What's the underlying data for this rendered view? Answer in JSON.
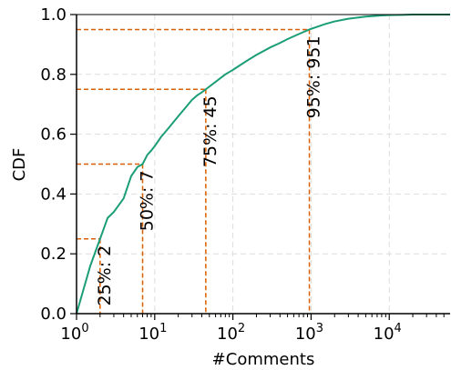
{
  "chart_data": {
    "type": "line",
    "xlabel": "#Comments",
    "ylabel": "CDF",
    "xscale": "log",
    "xlim": [
      1,
      60000
    ],
    "ylim": [
      0,
      1
    ],
    "grid": true,
    "x_ticks": [
      {
        "value": 1,
        "base": "10",
        "exp": "0"
      },
      {
        "value": 10,
        "base": "10",
        "exp": "1"
      },
      {
        "value": 100,
        "base": "10",
        "exp": "2"
      },
      {
        "value": 1000,
        "base": "10",
        "exp": "3"
      },
      {
        "value": 10000,
        "base": "10",
        "exp": "4"
      }
    ],
    "y_ticks": [
      {
        "value": 0,
        "label": "0.0"
      },
      {
        "value": 0.2,
        "label": "0.2"
      },
      {
        "value": 0.4,
        "label": "0.4"
      },
      {
        "value": 0.6,
        "label": "0.6"
      },
      {
        "value": 0.8,
        "label": "0.8"
      },
      {
        "value": 1.0,
        "label": "1.0"
      }
    ],
    "series": [
      {
        "color": "#1b9e77",
        "x": [
          1,
          1.5,
          2,
          2.5,
          3,
          4,
          5,
          6,
          7,
          8,
          9,
          10,
          12,
          15,
          20,
          25,
          30,
          35,
          40,
          45,
          60,
          80,
          100,
          150,
          200,
          300,
          400,
          500,
          700,
          951,
          1500,
          2000,
          3000,
          5000,
          8000,
          10000,
          15000,
          20000,
          30000,
          60000
        ],
        "y": [
          0,
          0.16,
          0.25,
          0.32,
          0.34,
          0.385,
          0.46,
          0.49,
          0.5,
          0.53,
          0.545,
          0.56,
          0.59,
          0.62,
          0.66,
          0.69,
          0.715,
          0.73,
          0.74,
          0.75,
          0.775,
          0.8,
          0.815,
          0.845,
          0.865,
          0.89,
          0.905,
          0.918,
          0.935,
          0.95,
          0.968,
          0.977,
          0.986,
          0.993,
          0.997,
          0.998,
          0.999,
          1.0,
          1.0,
          1.0
        ]
      }
    ],
    "percentile_markers": [
      {
        "p": 0.25,
        "x": 2,
        "label": "25%: 2"
      },
      {
        "p": 0.5,
        "x": 7,
        "label": "50%: 7"
      },
      {
        "p": 0.75,
        "x": 45,
        "label": "75%: 45"
      },
      {
        "p": 0.95,
        "x": 951,
        "label": "95%: 951"
      }
    ],
    "marker_color": "#d95f02"
  }
}
